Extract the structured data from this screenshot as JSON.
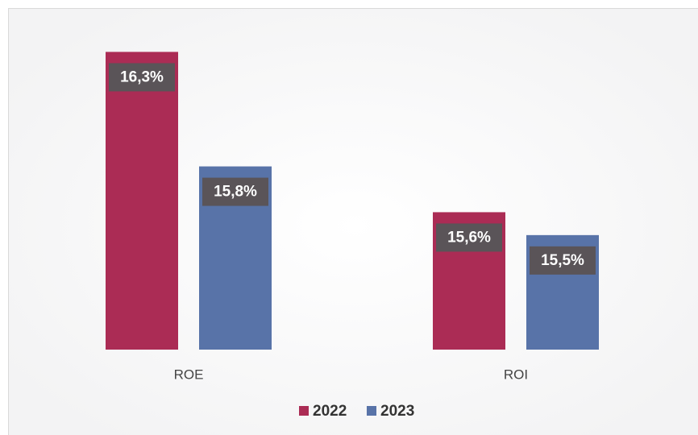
{
  "chart_data": {
    "type": "bar",
    "categories": [
      "ROE",
      "ROI"
    ],
    "series": [
      {
        "name": "2022",
        "color": "#ab2c55",
        "values": [
          16.3,
          15.6
        ],
        "value_labels": [
          "16,3%",
          "15,6%"
        ]
      },
      {
        "name": "2023",
        "color": "#5873a8",
        "values": [
          15.8,
          15.5
        ],
        "value_labels": [
          "15,8%",
          "15,5%"
        ]
      }
    ],
    "ylim": [
      15,
      16.4
    ],
    "legend": "bottom"
  }
}
